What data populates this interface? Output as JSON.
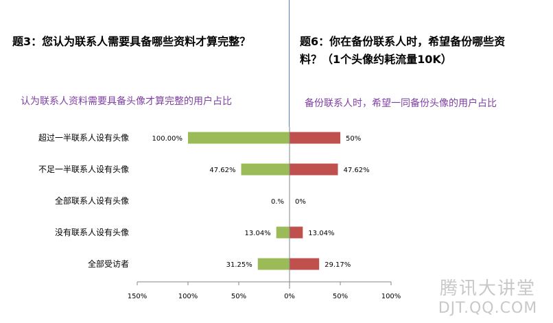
{
  "left": {
    "question": "题3：您认为联系人需要具备哪些资料才算完整？",
    "subtitle": "认为联系人资料需要具备头像才算完整的用户占比"
  },
  "right": {
    "question_line1": "题6：你在备份联系人时，希望备份哪些资",
    "question_line2": "料？（1个头像约耗流量10K）",
    "subtitle": "备份联系人时，希望一同备份头像的用户占比"
  },
  "watermark": {
    "cn": "腾讯大讲堂",
    "en": "DJT.QQ.COM"
  },
  "chart_data": {
    "type": "bar",
    "orientation": "horizontal-diverging",
    "categories": [
      "超过一半联系人设有头像",
      "不足一半联系人设有头像",
      "全部联系人设有头像",
      "没有联系人设有头像",
      "全部受访者"
    ],
    "series": [
      {
        "values": [
          100.0,
          47.62,
          0.0,
          13.04,
          31.25
        ],
        "labels": [
          "100.00%",
          "47.62%",
          "0.%",
          "13.04%",
          "31.25%"
        ],
        "color": "#9bbb59",
        "side": "left"
      },
      {
        "values": [
          50.0,
          47.62,
          0.0,
          13.04,
          29.17
        ],
        "labels": [
          "50%",
          "47.62%",
          "0%",
          "13.04%",
          "29.17%"
        ],
        "color": "#c0504d",
        "side": "right"
      }
    ],
    "xticks": [
      "150%",
      "100%",
      "50%",
      "0%",
      "50%",
      "100%"
    ],
    "xlim": [
      -150,
      100
    ],
    "grid": false
  }
}
